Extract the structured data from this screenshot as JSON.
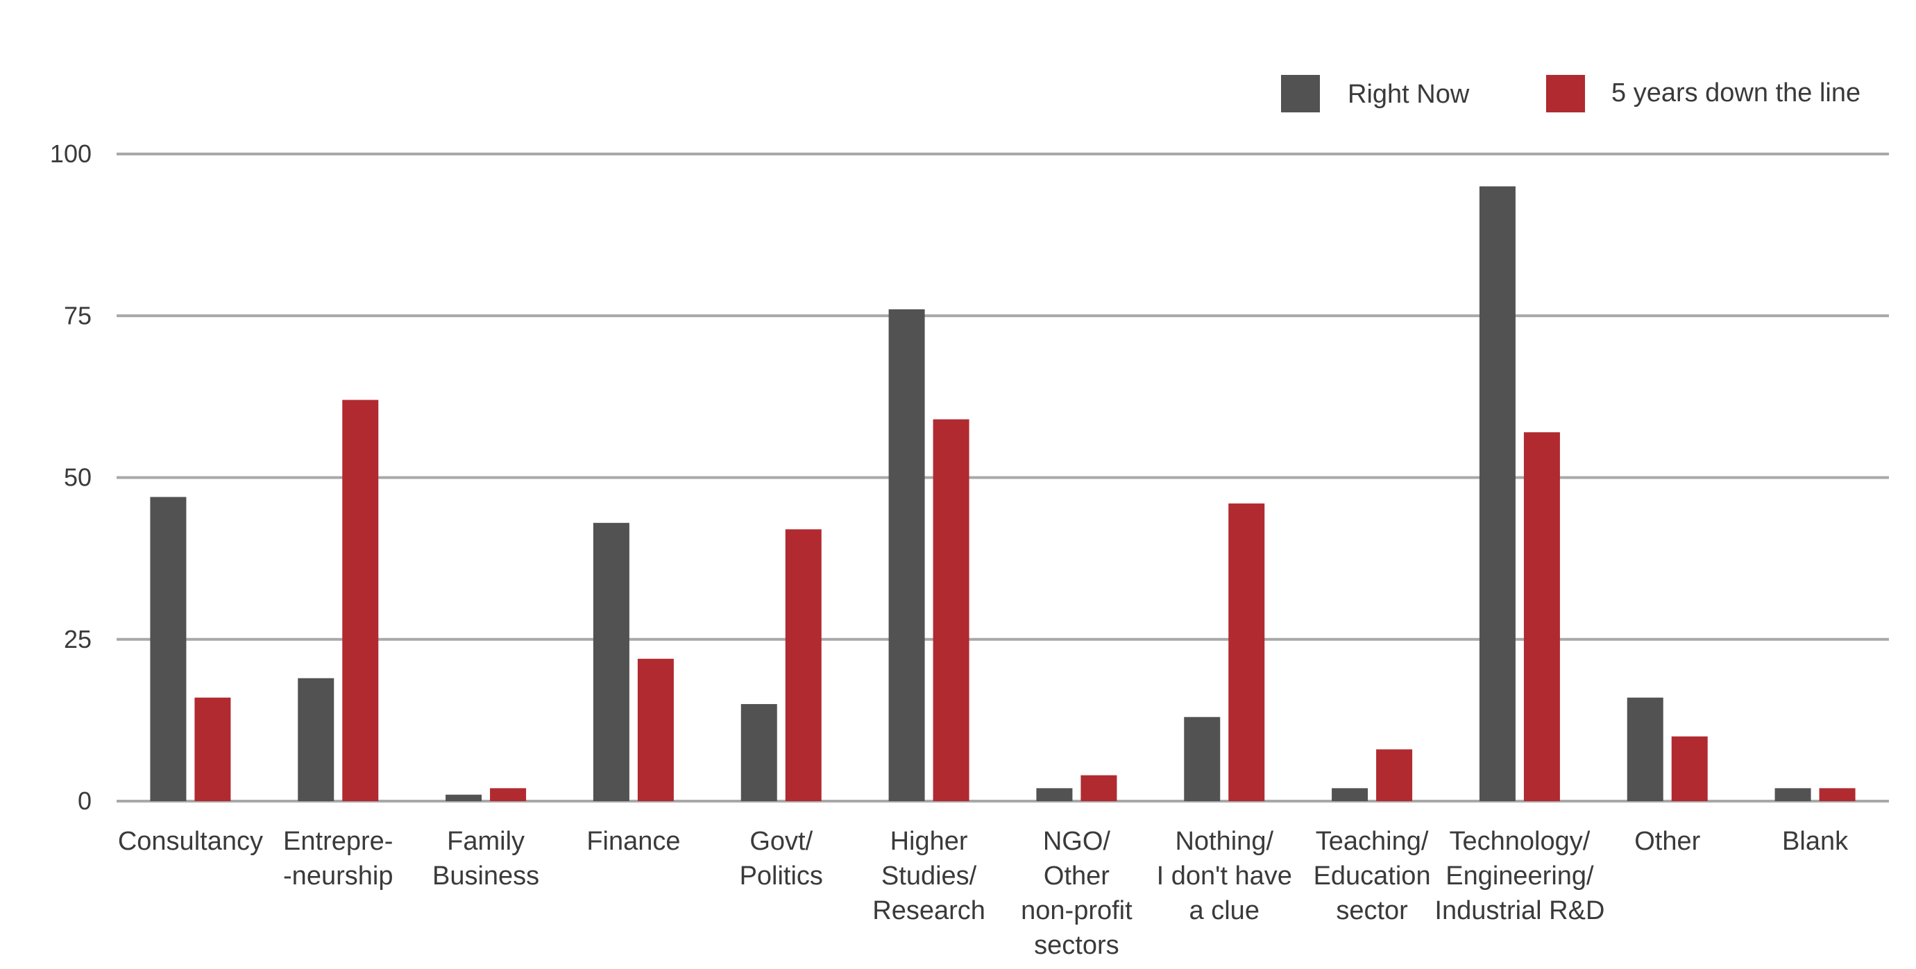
{
  "chart_data": {
    "type": "bar",
    "categories": [
      [
        "Consultancy"
      ],
      [
        "Entrepre-",
        "-neurship"
      ],
      [
        "Family",
        "Business"
      ],
      [
        "Finance"
      ],
      [
        "Govt/",
        "Politics"
      ],
      [
        "Higher",
        "Studies/",
        "Research"
      ],
      [
        "NGO/",
        "Other",
        "non-profit",
        "sectors"
      ],
      [
        "Nothing/",
        "I don't have",
        "a clue"
      ],
      [
        "Teaching/",
        "Education",
        "sector"
      ],
      [
        "Technology/",
        "Engineering/",
        "Industrial R&D"
      ],
      [
        "Other"
      ],
      [
        "Blank"
      ]
    ],
    "series": [
      {
        "name": "Right Now",
        "color": "#525252",
        "values": [
          47,
          19,
          1,
          43,
          15,
          76,
          2,
          13,
          2,
          95,
          16,
          2
        ]
      },
      {
        "name": "5 years down the line",
        "color": "#b02a30",
        "values": [
          16,
          62,
          2,
          22,
          42,
          59,
          4,
          46,
          8,
          57,
          10,
          2
        ]
      }
    ],
    "yticks": [
      0,
      25,
      50,
      75,
      100
    ],
    "ylim": [
      0,
      100
    ],
    "grid": true,
    "legend": "top-right"
  }
}
